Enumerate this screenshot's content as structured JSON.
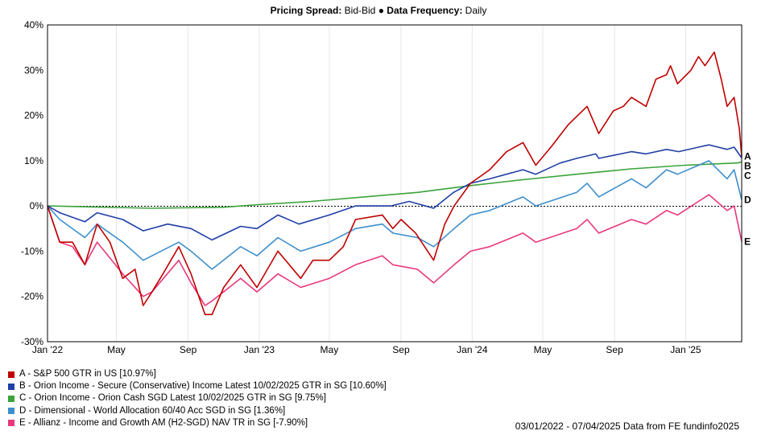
{
  "header": {
    "spread_label": "Pricing Spread:",
    "spread_value": "Bid-Bid",
    "bullet": "●",
    "freq_label": "Data Frequency:",
    "freq_value": "Daily"
  },
  "footer": {
    "text": "03/01/2022 - 07/04/2025 Data from FE fundinfo2025"
  },
  "chart_data": {
    "type": "line",
    "ylim": [
      -30,
      40
    ],
    "y_ticks": [
      40,
      30,
      20,
      10,
      0,
      -10,
      -20,
      -30
    ],
    "y_tick_labels": [
      "40%",
      "30%",
      "20%",
      "10%",
      "0%",
      "-10%",
      "-20%",
      "-30%"
    ],
    "x_range": [
      "2022-01-03",
      "2025-04-07"
    ],
    "x_ticks": [
      {
        "date": "2022-01-01",
        "label": "Jan '22"
      },
      {
        "date": "2022-05-01",
        "label": "May"
      },
      {
        "date": "2022-09-01",
        "label": "Sep"
      },
      {
        "date": "2023-01-01",
        "label": "Jan '23"
      },
      {
        "date": "2023-05-01",
        "label": "May"
      },
      {
        "date": "2023-09-01",
        "label": "Sep"
      },
      {
        "date": "2024-01-01",
        "label": "Jan '24"
      },
      {
        "date": "2024-05-01",
        "label": "May"
      },
      {
        "date": "2024-09-01",
        "label": "Sep"
      },
      {
        "date": "2025-01-01",
        "label": "Jan '25"
      }
    ],
    "grid": "vertical",
    "zero_line": "dotted",
    "series": [
      {
        "id": "A",
        "name": "A - S&P 500 GTR in US [10.97%]",
        "color": "#c00000",
        "points": [
          [
            "2022-01-03",
            0
          ],
          [
            "2022-01-24",
            -8
          ],
          [
            "2022-02-15",
            -8
          ],
          [
            "2022-03-08",
            -13
          ],
          [
            "2022-03-29",
            -4
          ],
          [
            "2022-04-20",
            -8
          ],
          [
            "2022-05-12",
            -16
          ],
          [
            "2022-06-02",
            -14
          ],
          [
            "2022-06-16",
            -22
          ],
          [
            "2022-07-01",
            -19
          ],
          [
            "2022-07-20",
            -15
          ],
          [
            "2022-08-16",
            -9
          ],
          [
            "2022-09-06",
            -15
          ],
          [
            "2022-09-30",
            -24
          ],
          [
            "2022-10-12",
            -24
          ],
          [
            "2022-11-01",
            -18
          ],
          [
            "2022-11-30",
            -13
          ],
          [
            "2022-12-28",
            -18
          ],
          [
            "2023-01-15",
            -14
          ],
          [
            "2023-02-02",
            -10
          ],
          [
            "2023-03-13",
            -16
          ],
          [
            "2023-04-03",
            -12
          ],
          [
            "2023-05-01",
            -12
          ],
          [
            "2023-05-25",
            -9
          ],
          [
            "2023-06-15",
            -3
          ],
          [
            "2023-07-31",
            -2
          ],
          [
            "2023-08-18",
            -5
          ],
          [
            "2023-09-01",
            -3
          ],
          [
            "2023-09-26",
            -6
          ],
          [
            "2023-10-27",
            -12
          ],
          [
            "2023-11-15",
            -4
          ],
          [
            "2023-12-01",
            0
          ],
          [
            "2023-12-29",
            5
          ],
          [
            "2024-01-31",
            8
          ],
          [
            "2024-02-29",
            12
          ],
          [
            "2024-03-28",
            14
          ],
          [
            "2024-04-19",
            9
          ],
          [
            "2024-05-15",
            13
          ],
          [
            "2024-06-14",
            18
          ],
          [
            "2024-07-16",
            22
          ],
          [
            "2024-08-05",
            16
          ],
          [
            "2024-08-30",
            21
          ],
          [
            "2024-09-16",
            22
          ],
          [
            "2024-09-30",
            24
          ],
          [
            "2024-10-25",
            22
          ],
          [
            "2024-11-11",
            28
          ],
          [
            "2024-11-29",
            29
          ],
          [
            "2024-12-06",
            31
          ],
          [
            "2024-12-18",
            27
          ],
          [
            "2025-01-10",
            30
          ],
          [
            "2025-01-23",
            33
          ],
          [
            "2025-02-03",
            31
          ],
          [
            "2025-02-19",
            34
          ],
          [
            "2025-03-03",
            28
          ],
          [
            "2025-03-13",
            22
          ],
          [
            "2025-03-25",
            24
          ],
          [
            "2025-04-03",
            17
          ],
          [
            "2025-04-07",
            10.97
          ]
        ]
      },
      {
        "id": "B",
        "name": "B - Orion Income - Secure (Conservative) Income Latest 10/02/2025 GTR in SG [10.60%]",
        "color": "#1f3fa6",
        "points": [
          [
            "2022-01-03",
            0
          ],
          [
            "2022-01-24",
            -1.5
          ],
          [
            "2022-03-08",
            -3.5
          ],
          [
            "2022-03-29",
            -1.5
          ],
          [
            "2022-05-12",
            -3
          ],
          [
            "2022-06-16",
            -5.5
          ],
          [
            "2022-07-28",
            -4
          ],
          [
            "2022-09-06",
            -5
          ],
          [
            "2022-10-12",
            -7.5
          ],
          [
            "2022-11-30",
            -4.5
          ],
          [
            "2022-12-28",
            -5
          ],
          [
            "2023-02-02",
            -2
          ],
          [
            "2023-03-10",
            -4
          ],
          [
            "2023-05-01",
            -2
          ],
          [
            "2023-06-15",
            0
          ],
          [
            "2023-08-15",
            0
          ],
          [
            "2023-09-15",
            1
          ],
          [
            "2023-10-27",
            -0.5
          ],
          [
            "2023-11-30",
            3
          ],
          [
            "2023-12-29",
            5
          ],
          [
            "2024-01-31",
            6
          ],
          [
            "2024-03-28",
            8
          ],
          [
            "2024-04-19",
            7
          ],
          [
            "2024-05-31",
            9.5
          ],
          [
            "2024-06-28",
            10.5
          ],
          [
            "2024-07-31",
            11.5
          ],
          [
            "2024-08-05",
            10.5
          ],
          [
            "2024-09-30",
            12
          ],
          [
            "2024-10-25",
            11.5
          ],
          [
            "2024-11-29",
            12.5
          ],
          [
            "2024-12-20",
            12
          ],
          [
            "2025-01-23",
            13
          ],
          [
            "2025-02-10",
            13.5
          ],
          [
            "2025-03-13",
            12.5
          ],
          [
            "2025-03-25",
            13
          ],
          [
            "2025-04-07",
            10.6
          ]
        ]
      },
      {
        "id": "C",
        "name": "C - Orion Income - Orion Cash SGD Latest 10/02/2025 GTR in SG [9.75%]",
        "color": "#3aa33a",
        "points": [
          [
            "2022-01-03",
            0
          ],
          [
            "2022-06-30",
            -0.5
          ],
          [
            "2022-10-31",
            -0.3
          ],
          [
            "2022-12-31",
            0.3
          ],
          [
            "2023-03-31",
            1
          ],
          [
            "2023-06-30",
            2
          ],
          [
            "2023-09-29",
            3
          ],
          [
            "2023-12-29",
            4.5
          ],
          [
            "2024-03-28",
            5.8
          ],
          [
            "2024-06-28",
            7
          ],
          [
            "2024-09-30",
            8.2
          ],
          [
            "2024-12-31",
            9
          ],
          [
            "2025-03-31",
            9.5
          ],
          [
            "2025-04-07",
            9.75
          ]
        ]
      },
      {
        "id": "D",
        "name": "D - Dimensional - World Allocation 60/40 Acc SGD in SG [1.36%]",
        "color": "#3d8fcc",
        "points": [
          [
            "2022-01-03",
            0
          ],
          [
            "2022-01-24",
            -3
          ],
          [
            "2022-03-08",
            -7
          ],
          [
            "2022-03-29",
            -4
          ],
          [
            "2022-05-12",
            -8
          ],
          [
            "2022-06-16",
            -12
          ],
          [
            "2022-08-16",
            -8
          ],
          [
            "2022-09-06",
            -10
          ],
          [
            "2022-10-12",
            -14
          ],
          [
            "2022-11-30",
            -9
          ],
          [
            "2022-12-28",
            -11
          ],
          [
            "2023-02-02",
            -7
          ],
          [
            "2023-03-13",
            -10
          ],
          [
            "2023-05-01",
            -8
          ],
          [
            "2023-06-15",
            -5
          ],
          [
            "2023-07-31",
            -4
          ],
          [
            "2023-08-18",
            -6
          ],
          [
            "2023-09-29",
            -7
          ],
          [
            "2023-10-27",
            -9
          ],
          [
            "2023-12-01",
            -5
          ],
          [
            "2023-12-29",
            -2
          ],
          [
            "2024-01-31",
            -1
          ],
          [
            "2024-03-28",
            2
          ],
          [
            "2024-04-19",
            0
          ],
          [
            "2024-06-28",
            3
          ],
          [
            "2024-07-16",
            5
          ],
          [
            "2024-08-05",
            2
          ],
          [
            "2024-09-30",
            6
          ],
          [
            "2024-10-25",
            4
          ],
          [
            "2024-11-29",
            8
          ],
          [
            "2024-12-18",
            7
          ],
          [
            "2025-01-23",
            9
          ],
          [
            "2025-02-10",
            10
          ],
          [
            "2025-03-13",
            6
          ],
          [
            "2025-03-25",
            8
          ],
          [
            "2025-04-07",
            1.36
          ]
        ]
      },
      {
        "id": "E",
        "name": "E - Allianz - Income and Growth AM (H2-SGD) NAV TR in SG [-7.90%]",
        "color": "#e8387e",
        "points": [
          [
            "2022-01-03",
            0
          ],
          [
            "2022-01-24",
            -8
          ],
          [
            "2022-02-15",
            -9
          ],
          [
            "2022-03-08",
            -13
          ],
          [
            "2022-03-29",
            -8
          ],
          [
            "2022-05-12",
            -15
          ],
          [
            "2022-06-16",
            -20
          ],
          [
            "2022-07-01",
            -19
          ],
          [
            "2022-08-16",
            -12
          ],
          [
            "2022-09-06",
            -17
          ],
          [
            "2022-09-30",
            -22
          ],
          [
            "2022-10-12",
            -21
          ],
          [
            "2022-11-30",
            -16
          ],
          [
            "2022-12-28",
            -19
          ],
          [
            "2023-02-02",
            -15
          ],
          [
            "2023-03-13",
            -18
          ],
          [
            "2023-05-01",
            -16
          ],
          [
            "2023-06-15",
            -13
          ],
          [
            "2023-07-31",
            -11
          ],
          [
            "2023-08-18",
            -13
          ],
          [
            "2023-09-29",
            -14
          ],
          [
            "2023-10-27",
            -17
          ],
          [
            "2023-12-01",
            -13
          ],
          [
            "2023-12-29",
            -10
          ],
          [
            "2024-01-31",
            -9
          ],
          [
            "2024-03-28",
            -6
          ],
          [
            "2024-04-19",
            -8
          ],
          [
            "2024-06-28",
            -5
          ],
          [
            "2024-07-16",
            -3
          ],
          [
            "2024-08-05",
            -6
          ],
          [
            "2024-09-30",
            -3
          ],
          [
            "2024-10-25",
            -4
          ],
          [
            "2024-11-29",
            -1
          ],
          [
            "2024-12-18",
            -2
          ],
          [
            "2025-01-23",
            1
          ],
          [
            "2025-02-10",
            2.5
          ],
          [
            "2025-03-13",
            -1
          ],
          [
            "2025-03-25",
            0
          ],
          [
            "2025-04-07",
            -7.9
          ]
        ]
      }
    ]
  }
}
